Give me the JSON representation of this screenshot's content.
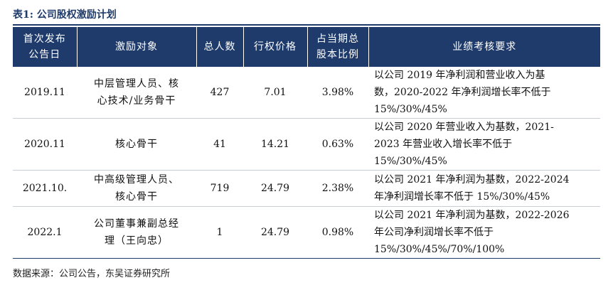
{
  "title": "表1:  公司股权激励计划",
  "headers": {
    "date": [
      "首次发布",
      "公告日"
    ],
    "target": "激励对象",
    "count": "总人数",
    "price": "行权价格",
    "ratio": [
      "占当期总",
      "股本比例"
    ],
    "requirement": "业绩考核要求"
  },
  "rows": [
    {
      "date": "2019.11",
      "target": [
        "中层管理人员、核",
        "心技术/业务骨干"
      ],
      "count": "427",
      "price": "7.01",
      "ratio": "3.98%",
      "requirement": [
        "以公司 2019 年净利润和营业收入为基",
        "数，2020-2022 年净利润增长率不低于",
        "15%/30%/45%"
      ]
    },
    {
      "date": "2020.11",
      "target": [
        "核心骨干"
      ],
      "count": "41",
      "price": "14.21",
      "ratio": "0.63%",
      "requirement": [
        "以公司 2020 年营业收入为基数，2021-",
        "2023 年营业收入增长率不低于",
        "15%/30%/45%"
      ]
    },
    {
      "date": "2021.10.",
      "target": [
        "中高级管理人员、",
        "核心骨干"
      ],
      "count": "719",
      "price": "24.79",
      "ratio": "2.38%",
      "requirement": [
        "以公司 2021 年净利润为基数，2022-2024",
        "年净利润增长率不低于 15%/30%/45%"
      ]
    },
    {
      "date": "2022.1",
      "target": [
        "公司董事兼副总经",
        "理（王向忠）"
      ],
      "count": "1",
      "price": "24.79",
      "ratio": "0.98%",
      "requirement": [
        "以公司 2021 年净利润为基数，2022-2026",
        "年公司净利润增长率不低于",
        "15%/30%/45%/70%/100%"
      ]
    }
  ],
  "source": "数据来源：公司公告，东吴证券研究所"
}
